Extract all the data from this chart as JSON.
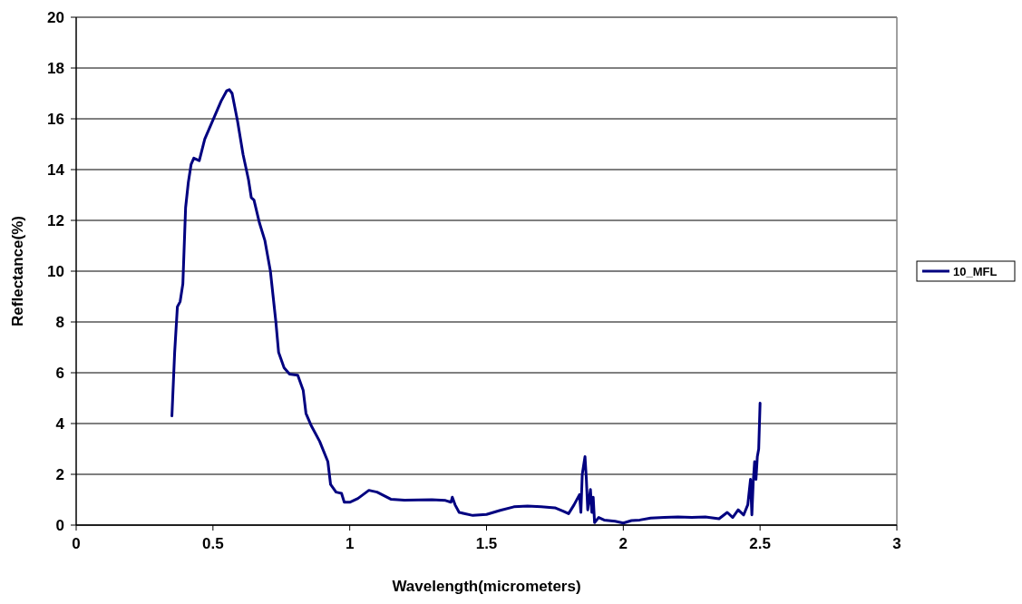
{
  "chart_data": {
    "type": "line",
    "xlabel": "Wavelength(micrometers)",
    "ylabel": "Reflectance(%)",
    "xlim": [
      0,
      3
    ],
    "xticks": [
      0,
      0.5,
      1,
      1.5,
      2,
      2.5,
      3
    ],
    "ylim": [
      0,
      20
    ],
    "yticks": [
      0,
      2,
      4,
      6,
      8,
      10,
      12,
      14,
      16,
      18,
      20
    ],
    "grid": "y",
    "legend": "right",
    "marker": "none",
    "line_style": "solid",
    "series": [
      {
        "name": "10_MFL",
        "color": "#000080",
        "x": [
          0.35,
          0.36,
          0.37,
          0.38,
          0.39,
          0.4,
          0.41,
          0.42,
          0.43,
          0.45,
          0.47,
          0.49,
          0.51,
          0.53,
          0.55,
          0.56,
          0.57,
          0.59,
          0.61,
          0.63,
          0.64,
          0.65,
          0.67,
          0.69,
          0.71,
          0.73,
          0.74,
          0.76,
          0.78,
          0.81,
          0.83,
          0.84,
          0.86,
          0.89,
          0.92,
          0.93,
          0.95,
          0.97,
          0.98,
          1.0,
          1.03,
          1.07,
          1.1,
          1.15,
          1.2,
          1.3,
          1.35,
          1.37,
          1.375,
          1.385,
          1.4,
          1.45,
          1.5,
          1.55,
          1.6,
          1.65,
          1.7,
          1.75,
          1.78,
          1.8,
          1.82,
          1.84,
          1.845,
          1.85,
          1.86,
          1.865,
          1.87,
          1.88,
          1.885,
          1.89,
          1.895,
          1.91,
          1.93,
          1.97,
          2.0,
          2.03,
          2.06,
          2.1,
          2.15,
          2.2,
          2.25,
          2.3,
          2.35,
          2.38,
          2.4,
          2.42,
          2.44,
          2.455,
          2.465,
          2.47,
          2.475,
          2.48,
          2.485,
          2.49,
          2.495,
          2.5
        ],
        "values": [
          4.3,
          6.8,
          8.6,
          8.8,
          9.5,
          12.5,
          13.5,
          14.2,
          14.45,
          14.35,
          15.2,
          15.7,
          16.2,
          16.7,
          17.1,
          17.15,
          17.0,
          15.9,
          14.6,
          13.6,
          12.9,
          12.8,
          11.9,
          11.2,
          10.0,
          8.0,
          6.8,
          6.2,
          5.95,
          5.9,
          5.3,
          4.4,
          3.9,
          3.3,
          2.5,
          1.6,
          1.3,
          1.25,
          0.9,
          0.9,
          1.05,
          1.37,
          1.3,
          1.02,
          0.98,
          1.0,
          0.97,
          0.9,
          1.1,
          0.8,
          0.5,
          0.38,
          0.42,
          0.58,
          0.72,
          0.75,
          0.72,
          0.68,
          0.55,
          0.45,
          0.8,
          1.2,
          0.5,
          2.0,
          2.7,
          1.8,
          0.6,
          1.4,
          0.5,
          1.1,
          0.1,
          0.3,
          0.2,
          0.15,
          0.08,
          0.18,
          0.2,
          0.28,
          0.3,
          0.32,
          0.3,
          0.32,
          0.25,
          0.5,
          0.3,
          0.6,
          0.4,
          0.8,
          1.8,
          0.4,
          1.7,
          2.5,
          1.8,
          2.7,
          3.0,
          4.8
        ]
      }
    ]
  }
}
